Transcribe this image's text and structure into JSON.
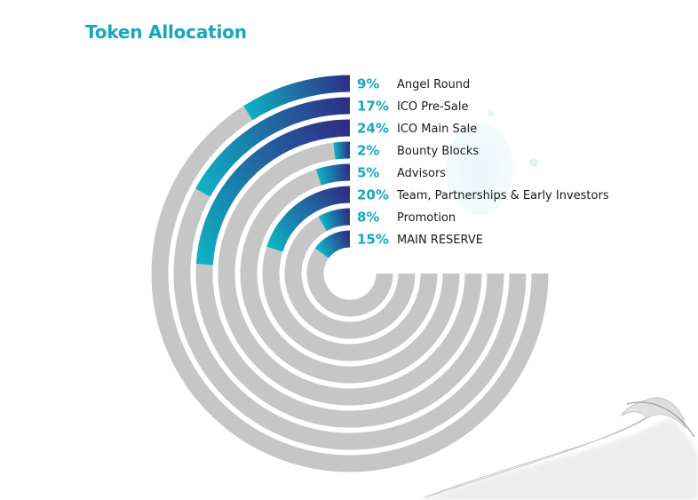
{
  "colors": {
    "accent": "#16a7bd",
    "track": "#c6c6c6",
    "gradient_start": "#0fb1c4",
    "gradient_end": "#2e2e86"
  },
  "chart_data": {
    "type": "radial-bar",
    "title": "Token Allocation",
    "series": [
      {
        "name": "Angel Round",
        "value": 9,
        "label": "9%"
      },
      {
        "name": "ICO Pre-Sale",
        "value": 17,
        "label": "17%"
      },
      {
        "name": "ICO Main Sale",
        "value": 24,
        "label": "24%"
      },
      {
        "name": "Bounty Blocks",
        "value": 2,
        "label": "2%"
      },
      {
        "name": "Advisors",
        "value": 5,
        "label": "5%"
      },
      {
        "name": "Team, Partnerships & Early Investors",
        "value": 20,
        "label": "20%"
      },
      {
        "name": "Promotion",
        "value": 8,
        "label": "8%"
      },
      {
        "name": "MAIN RESERVE",
        "value": 15,
        "label": "15%"
      }
    ],
    "legend_position": "right-of-arcs"
  }
}
